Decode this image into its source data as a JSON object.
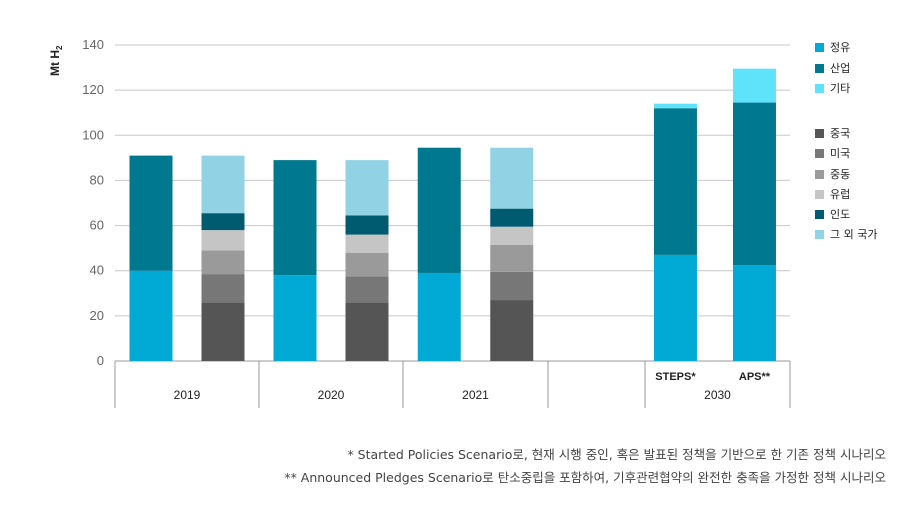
{
  "chart_data": {
    "type": "bar",
    "stacked": true,
    "ylabel": "Mt H",
    "ylabel_sub": "2",
    "ylim": [
      0,
      140
    ],
    "yticks": [
      0,
      20,
      40,
      60,
      80,
      100,
      120,
      140
    ],
    "grid": true,
    "legend_position": "right",
    "groups": [
      {
        "label": "2019",
        "bars": [
          {
            "label": "",
            "values": {
              "정유": 40,
              "산업": 51
            }
          },
          {
            "label": "",
            "values": {
              "중국": 26,
              "미국": 12.5,
              "중동": 10.5,
              "유럽": 9,
              "인도": 7.5,
              "그 외 국가": 25.5
            }
          }
        ]
      },
      {
        "label": "2020",
        "bars": [
          {
            "label": "",
            "values": {
              "정유": 38,
              "산업": 51
            }
          },
          {
            "label": "",
            "values": {
              "중국": 26,
              "미국": 11.5,
              "중동": 10.5,
              "유럽": 8,
              "인도": 8.5,
              "그 외 국가": 24.5
            }
          }
        ]
      },
      {
        "label": "2021",
        "bars": [
          {
            "label": "",
            "values": {
              "정유": 39,
              "산업": 55.5
            }
          },
          {
            "label": "",
            "values": {
              "중국": 27,
              "미국": 12.5,
              "중동": 12,
              "유럽": 8,
              "인도": 8,
              "그 외 국가": 27
            }
          }
        ]
      },
      {
        "label": "",
        "bars": []
      },
      {
        "label": "2030",
        "bars": [
          {
            "label": "STEPS*",
            "values": {
              "정유": 47,
              "산업": 65,
              "기타": 2
            }
          },
          {
            "label": "APS**",
            "values": {
              "정유": 42.5,
              "산업": 72,
              "기타": 15
            }
          }
        ]
      }
    ],
    "legend": [
      {
        "name": "정유",
        "color": "#00aad4"
      },
      {
        "name": "산업",
        "color": "#00788f"
      },
      {
        "name": "기타",
        "color": "#5ee3fb"
      },
      {
        "name": "중국",
        "color": "#555555"
      },
      {
        "name": "미국",
        "color": "#777777"
      },
      {
        "name": "중동",
        "color": "#9a9a9a"
      },
      {
        "name": "유럽",
        "color": "#c5c5c5"
      },
      {
        "name": "인도",
        "color": "#005a70"
      },
      {
        "name": "그 외 국가",
        "color": "#91d3e4"
      }
    ]
  },
  "notes": [
    "* Started Policies Scenario로, 현재 시행 중인, 혹은 발표된 정책을 기반으로 한 기존 정책 시나리오",
    "** Announced Pledges Scenario로 탄소중립을 포함하여, 기후관련협약의 완전한 충족을 가정한 정책 시나리오"
  ]
}
